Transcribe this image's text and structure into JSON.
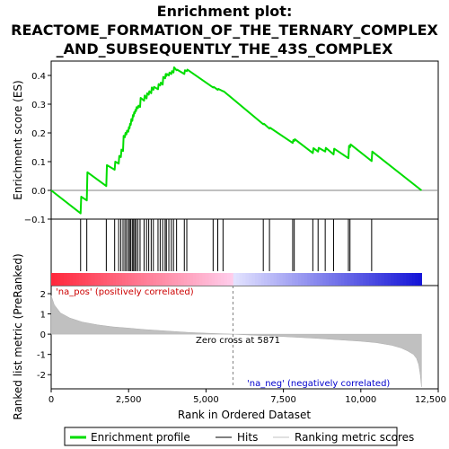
{
  "chart_data": {
    "type": "line",
    "title_line1": "Enrichment plot:",
    "title_line2": "REACTOME_FORMATION_OF_THE_TERNARY_COMPLEX",
    "title_line3": "_AND_SUBSEQUENTLY_THE_43S_COMPLEX",
    "es_ylabel": "Enrichment score (ES)",
    "metric_ylabel": "Ranked list metric (PreRanked)",
    "xlabel": "Rank in Ordered Dataset",
    "xlim": [
      0,
      12500
    ],
    "es_ylim": [
      -0.1,
      0.45
    ],
    "metric_ylim": [
      -2.7,
      2.4
    ],
    "x_ticks": [
      0,
      2500,
      5000,
      7500,
      10000,
      12500
    ],
    "x_tick_labels": [
      "0",
      "2,500",
      "5,000",
      "7,500",
      "10,000",
      "12,500"
    ],
    "es_ticks": [
      -0.1,
      0.0,
      0.1,
      0.2,
      0.3,
      0.4
    ],
    "es_tick_labels": [
      "−0.1",
      "0.0",
      "0.1",
      "0.2",
      "0.3",
      "0.4"
    ],
    "metric_ticks": [
      -2,
      -1,
      0,
      1,
      2
    ],
    "metric_tick_labels": [
      "-2",
      "-1",
      "0",
      "1",
      "2"
    ],
    "n_genes": 11960,
    "zero_cross_rank": 5871,
    "zero_cross_label": "Zero cross at 5871",
    "pos_label": "'na_pos' (positively correlated)",
    "neg_label": "'na_neg' (negatively correlated)",
    "hit_ranks": [
      950,
      1150,
      1780,
      2050,
      2180,
      2250,
      2320,
      2380,
      2430,
      2490,
      2530,
      2570,
      2620,
      2660,
      2700,
      2740,
      2800,
      2870,
      3000,
      3080,
      3150,
      3230,
      3300,
      3450,
      3520,
      3600,
      3680,
      3720,
      3800,
      3880,
      3950,
      4050,
      4300,
      4380,
      5230,
      5380,
      5550,
      6850,
      7050,
      7800,
      7850,
      8450,
      8620,
      8850,
      9120,
      9600,
      9650,
      10350
    ],
    "es_profile": {
      "x": [
        0,
        950,
        970,
        1150,
        1170,
        1780,
        1800,
        2050,
        2070,
        2180,
        2200,
        2250,
        2270,
        2320,
        2340,
        2380,
        2400,
        2430,
        2450,
        2490,
        2510,
        2530,
        2550,
        2570,
        2590,
        2620,
        2640,
        2660,
        2680,
        2700,
        2720,
        2740,
        2760,
        2800,
        2820,
        2870,
        2890,
        3000,
        3020,
        3080,
        3100,
        3150,
        3170,
        3230,
        3250,
        3300,
        3320,
        3450,
        3470,
        3520,
        3540,
        3600,
        3620,
        3680,
        3700,
        3720,
        3740,
        3800,
        3820,
        3880,
        3900,
        3950,
        3970,
        4050,
        4070,
        4300,
        4320,
        4380,
        4400,
        5230,
        5250,
        5380,
        5400,
        5550,
        5570,
        6850,
        6870,
        7050,
        7070,
        7800,
        7820,
        7850,
        7870,
        8450,
        8470,
        8620,
        8640,
        8850,
        8870,
        9120,
        9140,
        9600,
        9620,
        9650,
        9670,
        10350,
        10370,
        11960
      ],
      "y": [
        0.0,
        -0.08,
        -0.022,
        -0.035,
        0.063,
        0.015,
        0.088,
        0.072,
        0.1,
        0.093,
        0.12,
        0.116,
        0.142,
        0.137,
        0.19,
        0.185,
        0.2,
        0.195,
        0.208,
        0.204,
        0.22,
        0.216,
        0.232,
        0.228,
        0.248,
        0.242,
        0.262,
        0.257,
        0.272,
        0.268,
        0.28,
        0.276,
        0.29,
        0.286,
        0.295,
        0.29,
        0.322,
        0.312,
        0.33,
        0.32,
        0.338,
        0.333,
        0.345,
        0.338,
        0.358,
        0.35,
        0.36,
        0.352,
        0.37,
        0.365,
        0.375,
        0.368,
        0.395,
        0.39,
        0.405,
        0.398,
        0.405,
        0.4,
        0.41,
        0.405,
        0.415,
        0.41,
        0.428,
        0.418,
        0.42,
        0.405,
        0.418,
        0.415,
        0.42,
        0.358,
        0.36,
        0.35,
        0.353,
        0.345,
        0.345,
        0.23,
        0.232,
        0.215,
        0.218,
        0.165,
        0.175,
        0.172,
        0.178,
        0.13,
        0.147,
        0.135,
        0.148,
        0.135,
        0.148,
        0.125,
        0.145,
        0.112,
        0.155,
        0.15,
        0.16,
        0.102,
        0.135,
        0.0
      ]
    },
    "metric_profile": {
      "x": [
        0,
        100,
        300,
        600,
        1000,
        1500,
        2000,
        2500,
        3000,
        3500,
        4000,
        4500,
        5000,
        5500,
        5871,
        6500,
        7000,
        7500,
        8000,
        8500,
        9000,
        9500,
        10000,
        10500,
        11000,
        11300,
        11500,
        11700,
        11800,
        11870,
        11920,
        11960
      ],
      "y": [
        1.9,
        1.45,
        1.05,
        0.8,
        0.6,
        0.46,
        0.36,
        0.3,
        0.23,
        0.18,
        0.13,
        0.08,
        0.05,
        0.02,
        0.0,
        -0.05,
        -0.08,
        -0.12,
        -0.16,
        -0.2,
        -0.25,
        -0.3,
        -0.35,
        -0.42,
        -0.55,
        -0.68,
        -0.82,
        -1.0,
        -1.2,
        -1.5,
        -2.0,
        -2.6
      ]
    },
    "legend": [
      "Enrichment profile",
      "Hits",
      "Ranking metric scores"
    ],
    "colors": {
      "es_line": "#00dd00",
      "hits": "#000000",
      "metric_fill": "#c0c0c0",
      "pos_text": "#cc0000",
      "neg_text": "#0000cc",
      "zero_line": "#808080",
      "bar_pos_strong": "#ff0000",
      "bar_pos_weak": "#ffc0e0",
      "bar_neutral": "#e8e8ff",
      "bar_neg_weak": "#a0a0ff",
      "bar_neg_strong": "#0000cc"
    }
  }
}
